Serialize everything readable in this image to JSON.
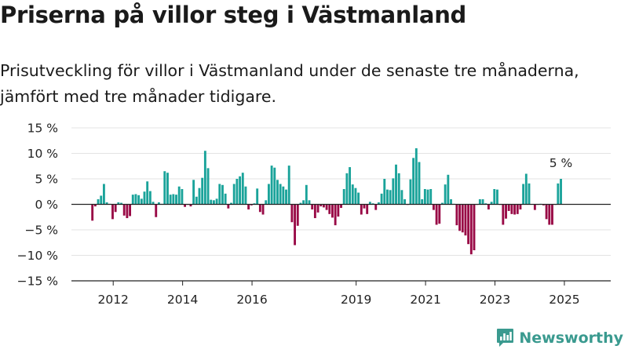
{
  "header": {
    "title": "Priserna på villor steg i Västmanland",
    "subtitle": "Prisutveckling för villor i Västmanland under de senaste tre månaderna, jämfört med tre månader tidigare."
  },
  "brand": {
    "name": "Newsworthy"
  },
  "colors": {
    "positive": "#1aa39a",
    "negative": "#990a46",
    "grid": "#e3e3e3",
    "axis": "#222222",
    "brand": "#3a9a8f"
  },
  "chart_data": {
    "type": "bar",
    "x_start": 2011.4,
    "x_step": 0.0833333,
    "values": [
      -3.2,
      -0.4,
      1.0,
      1.7,
      4.0,
      0.4,
      0.1,
      -2.9,
      -1.5,
      0.4,
      0.3,
      -2.2,
      -2.7,
      -2.3,
      1.9,
      2.0,
      1.8,
      1.1,
      2.5,
      4.5,
      2.6,
      0.5,
      -2.5,
      0.4,
      0.1,
      6.5,
      6.2,
      1.9,
      2.0,
      1.9,
      3.5,
      3.0,
      -0.5,
      -0.1,
      -0.4,
      4.8,
      1.5,
      3.2,
      5.2,
      10.5,
      7.1,
      0.9,
      0.8,
      1.1,
      4.0,
      3.8,
      2.1,
      -0.8,
      0.3,
      4.0,
      5.0,
      5.5,
      6.2,
      3.5,
      -1.0,
      -0.2,
      0.2,
      3.1,
      -1.5,
      -2.0,
      0.8,
      4.0,
      7.6,
      7.2,
      4.8,
      4.0,
      3.5,
      2.9,
      7.6,
      -3.5,
      -8.0,
      -4.2,
      0.3,
      0.8,
      3.8,
      0.8,
      -1.0,
      -2.7,
      -1.6,
      -0.4,
      -0.6,
      -1.1,
      -1.9,
      -2.6,
      -4.1,
      -2.4,
      -0.7,
      3.0,
      6.1,
      7.3,
      3.9,
      3.2,
      2.3,
      -2.0,
      -0.8,
      -1.9,
      0.5,
      0.2,
      -1.1,
      0.4,
      2.1,
      5.0,
      2.9,
      2.8,
      5.1,
      7.8,
      6.1,
      2.8,
      1.0,
      -0.1,
      4.9,
      9.1,
      11.0,
      8.3,
      1.0,
      3.0,
      2.9,
      3.0,
      -1.1,
      -4.0,
      -3.8,
      0.3,
      3.9,
      5.8,
      1.0,
      0.1,
      -4.1,
      -5.2,
      -5.5,
      -6.1,
      -7.8,
      -9.8,
      -9.0,
      -0.1,
      1.0,
      1.0,
      0.2,
      -1.0,
      0.5,
      3.0,
      2.9,
      -0.1,
      -4.0,
      -2.8,
      -1.3,
      -1.9,
      -2.0,
      -1.9,
      -1.0,
      4.0,
      6.0,
      4.1,
      0.0,
      -1.1,
      -0.1,
      0.1,
      -0.2,
      -2.9,
      -4.0,
      -4.0,
      -0.1,
      4.1,
      5.0
    ],
    "x_ticks": [
      "2012",
      "2014",
      "2016",
      "2019",
      "2021",
      "2023",
      "2025"
    ],
    "x_tick_values": [
      2012,
      2014,
      2016,
      2019,
      2021,
      2023,
      2025
    ],
    "x_range": [
      2011.0,
      2026.2
    ],
    "y_ticks": [
      "15 %",
      "10 %",
      "5 %",
      "0 %",
      "−5 %",
      "−10 %",
      "−15 %"
    ],
    "y_tick_values": [
      15,
      10,
      5,
      0,
      -5,
      -10,
      -15
    ],
    "ylim": [
      -15,
      15
    ],
    "annotation": {
      "label": "5 %",
      "value": 5.0
    },
    "grid": true
  }
}
